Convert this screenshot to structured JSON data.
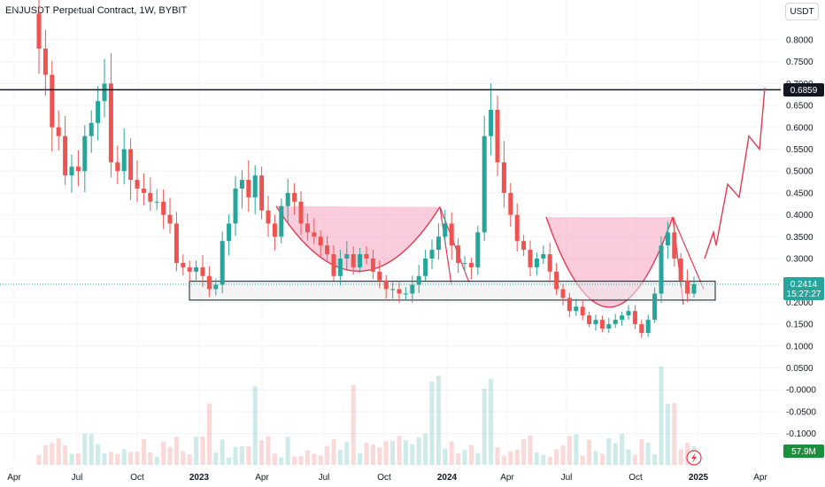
{
  "header": {
    "title": "ENJUSDT Perpetual Contract, 1W, BYBIT",
    "currency": "USDT"
  },
  "tags": {
    "resistance_price": "0.6859",
    "current_price": "0.2414",
    "countdown": "15:27:27",
    "volume": "57.9M"
  },
  "colors": {
    "up": "#26a69a",
    "down": "#ef5350",
    "pattern_fill": "#f48fb1",
    "pattern_line": "#e53950",
    "current_tag": "#26a69a",
    "volume_tag": "#1b8f3b",
    "resistance_tag": "#131722"
  },
  "chart_data": {
    "type": "candlestick",
    "title": "ENJUSDT Perpetual Contract, 1W, BYBIT",
    "y_axis": {
      "ticks": [
        "0.8000",
        "0.7500",
        "0.7000",
        "0.6500",
        "0.6000",
        "0.5500",
        "0.5000",
        "0.4500",
        "0.4000",
        "0.3500",
        "0.3000",
        "0.2500",
        "0.2000",
        "0.1500",
        "0.1000",
        "0.0500",
        "-0.0000",
        "-0.0500",
        "-0.1000"
      ],
      "ylim": [
        -0.13,
        0.84
      ]
    },
    "x_axis": {
      "ticks": [
        "Apr",
        "Jul",
        "Oct",
        "2023",
        "Apr",
        "Jul",
        "Oct",
        "2024",
        "Apr",
        "Jul",
        "Oct",
        "2025",
        "Apr"
      ]
    },
    "horizontal_line": 0.6859,
    "support_zone": [
      0.205,
      0.248
    ],
    "price_path": [
      [
        0.78,
        0.72,
        0.6,
        0.58,
        0.49,
        0.51,
        0.5,
        0.58,
        0.61,
        0.66,
        0.7,
        0.52,
        0.5,
        0.55,
        0.48,
        0.46,
        0.45,
        0.43,
        0.43,
        0.4,
        0.38,
        0.29,
        0.28,
        0.27,
        0.28,
        0.26,
        0.23,
        0.24,
        0.34,
        0.38,
        0.46,
        0.48,
        0.44,
        0.49,
        0.41,
        0.38,
        0.35,
        0.42,
        0.45,
        0.43,
        0.38,
        0.36,
        0.35,
        0.33,
        0.31,
        0.26,
        0.3,
        0.31,
        0.28,
        0.31,
        0.3,
        0.27,
        0.25,
        0.23,
        0.23,
        0.22,
        0.22,
        0.24,
        0.26,
        0.3,
        0.32,
        0.35,
        0.38,
        0.33,
        0.29,
        0.29,
        0.28,
        0.36,
        0.58,
        0.64,
        0.52,
        0.45,
        0.4,
        0.34,
        0.32,
        0.28,
        0.3,
        0.31,
        0.27,
        0.23,
        0.21,
        0.18,
        0.19,
        0.17,
        0.15,
        0.16,
        0.14,
        0.15,
        0.16,
        0.17,
        0.18,
        0.15,
        0.13,
        0.16,
        0.22,
        0.33,
        0.36,
        0.3,
        0.25,
        0.22,
        0.2414
      ]
    ],
    "patterns": [
      {
        "name": "",
        "rim": 0.42,
        "bottom": 0.2
      },
      {
        "name": "",
        "rim": 0.395,
        "bottom": 0.1
      }
    ],
    "projection": [
      0.3,
      0.36,
      0.33,
      0.47,
      0.44,
      0.58,
      0.55,
      0.69
    ]
  }
}
